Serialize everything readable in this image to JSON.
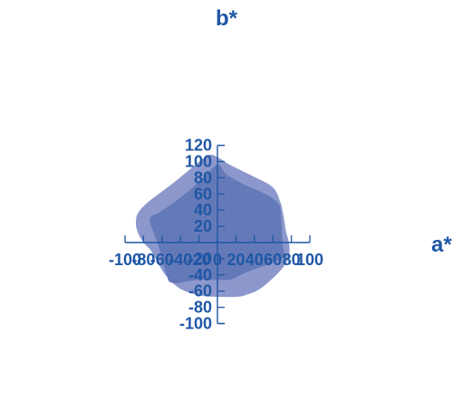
{
  "chart_data": {
    "type": "area",
    "title": "",
    "xlabel": "a*",
    "ylabel": "b*",
    "xlim": [
      -100,
      100
    ],
    "ylim": [
      -100,
      120
    ],
    "grid": false,
    "x_ticks": [
      -100,
      -80,
      -60,
      -40,
      -20,
      0,
      20,
      40,
      60,
      80,
      100
    ],
    "y_ticks": [
      -100,
      -80,
      -60,
      -40,
      -20,
      20,
      40,
      60,
      80,
      100,
      120
    ],
    "x_tick_labels": [
      "-100",
      "-80",
      "-60",
      "-40",
      "-20",
      "0",
      "20",
      "40",
      "60",
      "80",
      "100"
    ],
    "y_tick_labels": [
      "-100",
      "-80",
      "-60",
      "-40",
      "-20",
      "20",
      "40",
      "60",
      "80",
      "100",
      "120"
    ],
    "series": [
      {
        "color": "#8c98cc",
        "points": [
          [
            -5,
            108
          ],
          [
            15,
            95
          ],
          [
            40,
            81
          ],
          [
            60,
            68
          ],
          [
            68,
            50
          ],
          [
            72,
            30
          ],
          [
            74,
            15
          ],
          [
            77,
            2
          ],
          [
            78,
            -10
          ],
          [
            76,
            -22
          ],
          [
            70,
            -32
          ],
          [
            60,
            -44
          ],
          [
            45,
            -58
          ],
          [
            30,
            -65
          ],
          [
            20,
            -67
          ],
          [
            0,
            -67
          ],
          [
            -15,
            -66
          ],
          [
            -30,
            -62
          ],
          [
            -43,
            -55
          ],
          [
            -55,
            -42
          ],
          [
            -63,
            -28
          ],
          [
            -72,
            -10
          ],
          [
            -80,
            0
          ],
          [
            -87,
            15
          ],
          [
            -88,
            28
          ],
          [
            -85,
            38
          ],
          [
            -75,
            50
          ],
          [
            -60,
            63
          ],
          [
            -45,
            76
          ],
          [
            -25,
            95
          ],
          [
            -15,
            104
          ]
        ]
      },
      {
        "color": "#6479b8",
        "points": [
          [
            -5,
            92
          ],
          [
            2,
            96
          ],
          [
            10,
            84
          ],
          [
            30,
            71
          ],
          [
            50,
            61
          ],
          [
            66,
            48
          ],
          [
            69,
            30
          ],
          [
            70,
            10
          ],
          [
            71,
            -5
          ],
          [
            72,
            -18
          ],
          [
            60,
            -25
          ],
          [
            40,
            -33
          ],
          [
            25,
            -40
          ],
          [
            12,
            -46
          ],
          [
            -20,
            -46
          ],
          [
            -48,
            -50
          ],
          [
            -55,
            -40
          ],
          [
            -60,
            -20
          ],
          [
            -65,
            0
          ],
          [
            -70,
            15
          ],
          [
            -73,
            30
          ],
          [
            -63,
            37
          ],
          [
            -50,
            47
          ],
          [
            -35,
            60
          ],
          [
            -20,
            75
          ],
          [
            -10,
            86
          ]
        ]
      }
    ]
  }
}
